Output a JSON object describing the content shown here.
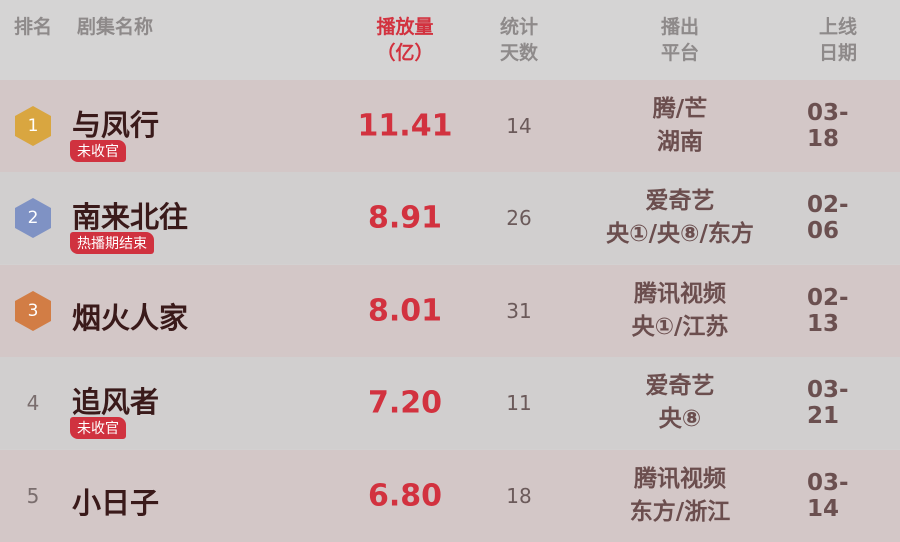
{
  "header": {
    "rank": "排名",
    "name": "剧集名称",
    "plays": [
      "播放量",
      "（亿）"
    ],
    "days": [
      "统计",
      "天数"
    ],
    "platform": [
      "播出",
      "平台"
    ],
    "date": [
      "上线",
      "日期"
    ]
  },
  "colors": {
    "accent": "#d2323f",
    "gold": "#d9a640",
    "silver": "#7f92c4",
    "bronze": "#d27d45"
  },
  "rows": [
    {
      "rank": "1",
      "name": "与凤行",
      "badge": "未收官",
      "plays": "11.41",
      "days": "14",
      "platform": [
        "腾/芒",
        "湖南"
      ],
      "date": "03-18"
    },
    {
      "rank": "2",
      "name": "南来北往",
      "badge": "热播期结束",
      "plays": "8.91",
      "days": "26",
      "platform": [
        "爱奇艺",
        "央①/央⑧/东方"
      ],
      "date": "02-06"
    },
    {
      "rank": "3",
      "name": "烟火人家",
      "badge": "",
      "plays": "8.01",
      "days": "31",
      "platform": [
        "腾讯视频",
        "央①/江苏"
      ],
      "date": "02-13"
    },
    {
      "rank": "4",
      "name": "追风者",
      "badge": "未收官",
      "plays": "7.20",
      "days": "11",
      "platform": [
        "爱奇艺",
        "央⑧"
      ],
      "date": "03-21"
    },
    {
      "rank": "5",
      "name": "小日子",
      "badge": "",
      "plays": "6.80",
      "days": "18",
      "platform": [
        "腾讯视频",
        "东方/浙江"
      ],
      "date": "03-14"
    }
  ]
}
